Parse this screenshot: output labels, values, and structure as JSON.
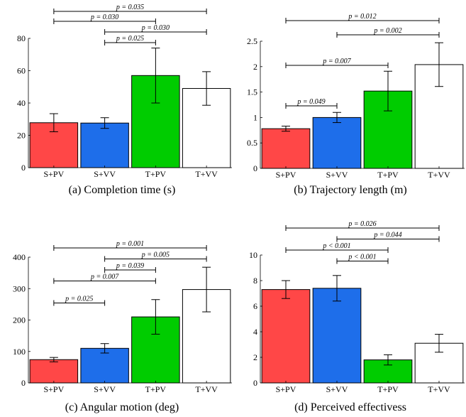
{
  "charts": [
    {
      "caption": "(a) Completion time (s)",
      "chart_data": {
        "type": "bar",
        "categories": [
          "S+PV",
          "S+VV",
          "T+PV",
          "T+VV"
        ],
        "values": [
          27.8,
          27.6,
          57.0,
          49.0
        ],
        "errors": [
          [
            22.2,
            33.4
          ],
          [
            24.3,
            30.9
          ],
          [
            40.0,
            74.0
          ],
          [
            38.6,
            59.4
          ]
        ],
        "colors": [
          "#ff4747",
          "#1e6eea",
          "#00cc00",
          "#ffffff"
        ],
        "ylim": [
          0,
          80
        ],
        "yticks": [
          0,
          20,
          40,
          60,
          80
        ],
        "ytick_labels": [
          "0",
          "20",
          "40",
          "60",
          "80"
        ],
        "sig": [
          {
            "from": 0,
            "to": 2,
            "label": "p = 0.030"
          },
          {
            "from": 0,
            "to": 3,
            "label": "p = 0.035"
          },
          {
            "from": 1,
            "to": 2,
            "label": "p = 0.025"
          },
          {
            "from": 1,
            "to": 3,
            "label": "p = 0.030"
          }
        ],
        "sig_order": [
          1,
          0,
          3,
          2
        ]
      }
    },
    {
      "caption": "(b) Trajectory length (m)",
      "chart_data": {
        "type": "bar",
        "categories": [
          "S+PV",
          "S+VV",
          "T+PV",
          "T+VV"
        ],
        "values": [
          0.78,
          1.0,
          1.52,
          2.04
        ],
        "errors": [
          [
            0.73,
            0.83
          ],
          [
            0.9,
            1.1
          ],
          [
            1.13,
            1.91
          ],
          [
            1.61,
            2.47
          ]
        ],
        "colors": [
          "#ff4747",
          "#1e6eea",
          "#00cc00",
          "#ffffff"
        ],
        "ylim": [
          0,
          2.5
        ],
        "yticks": [
          0,
          0.5,
          1,
          1.5,
          2,
          2.5
        ],
        "ytick_labels": [
          "0",
          "0.5",
          "1",
          "1.5",
          "2",
          "2.5"
        ],
        "sig": [
          {
            "from": 0,
            "to": 3,
            "label": "p = 0.012"
          },
          {
            "from": 1,
            "to": 3,
            "label": "p = 0.002"
          },
          {
            "from": 0,
            "to": 2,
            "label": "p = 0.007"
          },
          {
            "from": 0,
            "to": 1,
            "label": "p = 0.049"
          }
        ],
        "sig_order": [
          0,
          1,
          2,
          3
        ]
      }
    },
    {
      "caption": "(c) Angular motion (deg)",
      "chart_data": {
        "type": "bar",
        "categories": [
          "S+PV",
          "S+VV",
          "T+PV",
          "T+VV"
        ],
        "values": [
          74,
          110,
          210,
          297
        ],
        "errors": [
          [
            67,
            81
          ],
          [
            95,
            125
          ],
          [
            155,
            265
          ],
          [
            226,
            368
          ]
        ],
        "colors": [
          "#ff4747",
          "#1e6eea",
          "#00cc00",
          "#ffffff"
        ],
        "ylim": [
          0,
          400
        ],
        "yticks": [
          0,
          100,
          200,
          300,
          400
        ],
        "ytick_labels": [
          "0",
          "100",
          "200",
          "300",
          "400"
        ],
        "sig": [
          {
            "from": 0,
            "to": 3,
            "label": "p = 0.001"
          },
          {
            "from": 1,
            "to": 3,
            "label": "p = 0.005"
          },
          {
            "from": 1,
            "to": 2,
            "label": "p = 0.039"
          },
          {
            "from": 0,
            "to": 2,
            "label": "p = 0.007"
          },
          {
            "from": 0,
            "to": 1,
            "label": "p = 0.025"
          }
        ],
        "sig_order": [
          0,
          1,
          2,
          3,
          5
        ]
      }
    },
    {
      "caption": "(d) Perceived effectivess",
      "chart_data": {
        "type": "bar",
        "categories": [
          "S+PV",
          "S+VV",
          "T+PV",
          "T+VV"
        ],
        "values": [
          7.3,
          7.4,
          1.8,
          3.1
        ],
        "errors": [
          [
            6.6,
            8.0
          ],
          [
            6.4,
            8.4
          ],
          [
            1.4,
            2.2
          ],
          [
            2.4,
            3.8
          ]
        ],
        "colors": [
          "#ff4747",
          "#1e6eea",
          "#00cc00",
          "#ffffff"
        ],
        "ylim": [
          0,
          10
        ],
        "yticks": [
          0,
          2,
          4,
          6,
          8,
          10
        ],
        "ytick_labels": [
          "0",
          "2",
          "4",
          "6",
          "8",
          "10"
        ],
        "sig": [
          {
            "from": 0,
            "to": 3,
            "label": "p = 0.026"
          },
          {
            "from": 1,
            "to": 3,
            "label": "p = 0.044"
          },
          {
            "from": 0,
            "to": 2,
            "label": "p < 0.001"
          },
          {
            "from": 1,
            "to": 2,
            "label": "p < 0.001"
          }
        ],
        "sig_order": [
          0,
          1,
          2,
          3
        ]
      }
    }
  ]
}
